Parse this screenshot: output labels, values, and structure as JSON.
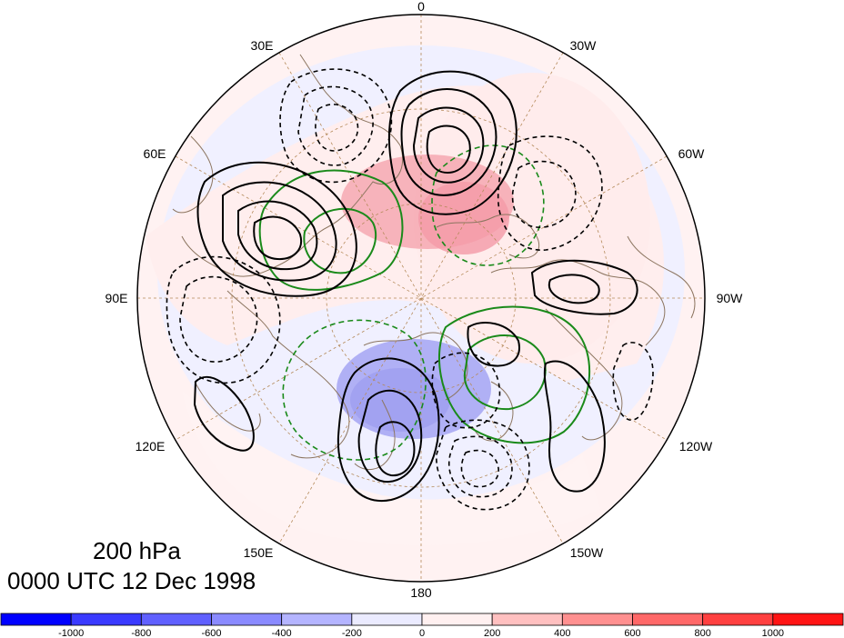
{
  "title": {
    "level": "200 hPa",
    "time": "0000 UTC 12 Dec 1998"
  },
  "longitude_labels": {
    "deg_0": "0",
    "deg_30w": "30W",
    "deg_60w": "60W",
    "deg_90w": "90W",
    "deg_120w": "120W",
    "deg_150w": "150W",
    "deg_180": "180",
    "deg_150e": "150E",
    "deg_120e": "120E",
    "deg_90e": "90E",
    "deg_60e": "60E",
    "deg_30e": "30E"
  },
  "colorbar": {
    "colors": [
      "#0000ff",
      "#3a3aff",
      "#6060ff",
      "#8a8aff",
      "#b4b4ff",
      "#ebebff",
      "#fff0f0",
      "#ffc0c0",
      "#ff9090",
      "#ff6868",
      "#ff4040",
      "#ff1414"
    ],
    "tick_labels": [
      "-1000",
      "-800",
      "-600",
      "-400",
      "-200",
      "0",
      "200",
      "400",
      "600",
      "800",
      "1000"
    ]
  },
  "colors": {
    "positive_contour": "#000000",
    "negative_contour": "#000000",
    "green_contour": "#1a8a1a",
    "coastline": "#8c7560",
    "graticule": "#b58a5a"
  }
}
